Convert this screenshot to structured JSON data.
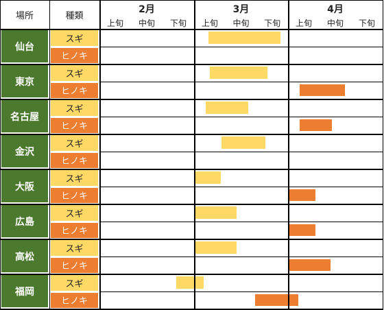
{
  "header": {
    "place": "場所",
    "type": "種類",
    "months": [
      "2月",
      "3月",
      "4月"
    ],
    "periods": [
      "上旬",
      "中旬",
      "下旬"
    ]
  },
  "colors": {
    "city": "#4b7a2e",
    "sugi": "#ffd966",
    "hinoki": "#ed7d31"
  },
  "timeline_unit": "fraction of the Feb–Apr span (0 = start of Feb, 1 = end of Apr)",
  "rows": [
    {
      "city": "仙台",
      "species": [
        {
          "name": "スギ",
          "kind": "sugi",
          "start": 0.384,
          "end": 0.639
        },
        {
          "name": "ヒノキ",
          "kind": "hinoki",
          "start": null,
          "end": null
        }
      ]
    },
    {
      "city": "東京",
      "species": [
        {
          "name": "スギ",
          "kind": "sugi",
          "start": 0.391,
          "end": 0.594
        },
        {
          "name": "ヒノキ",
          "kind": "hinoki",
          "start": 0.707,
          "end": 0.868
        }
      ]
    },
    {
      "city": "名古屋",
      "species": [
        {
          "name": "スギ",
          "kind": "sugi",
          "start": 0.376,
          "end": 0.526
        },
        {
          "name": "ヒノキ",
          "kind": "hinoki",
          "start": 0.707,
          "end": 0.82
        }
      ]
    },
    {
      "city": "金沢",
      "species": [
        {
          "name": "スギ",
          "kind": "sugi",
          "start": 0.432,
          "end": 0.586
        },
        {
          "name": "ヒノキ",
          "kind": "hinoki",
          "start": null,
          "end": null
        }
      ]
    },
    {
      "city": "大阪",
      "species": [
        {
          "name": "スギ",
          "kind": "sugi",
          "start": 0.335,
          "end": 0.429
        },
        {
          "name": "ヒノキ",
          "kind": "hinoki",
          "start": 0.665,
          "end": 0.763
        }
      ]
    },
    {
      "city": "広島",
      "species": [
        {
          "name": "スギ",
          "kind": "sugi",
          "start": 0.335,
          "end": 0.485
        },
        {
          "name": "ヒノキ",
          "kind": "hinoki",
          "start": 0.665,
          "end": 0.763
        }
      ]
    },
    {
      "city": "高松",
      "species": [
        {
          "name": "スギ",
          "kind": "sugi",
          "start": 0.335,
          "end": 0.485
        },
        {
          "name": "ヒノキ",
          "kind": "hinoki",
          "start": 0.665,
          "end": 0.816
        }
      ]
    },
    {
      "city": "福岡",
      "species": [
        {
          "name": "スギ",
          "kind": "sugi",
          "start": 0.271,
          "end": 0.368
        },
        {
          "name": "ヒノキ",
          "kind": "hinoki",
          "start": 0.549,
          "end": 0.703
        }
      ]
    }
  ]
}
